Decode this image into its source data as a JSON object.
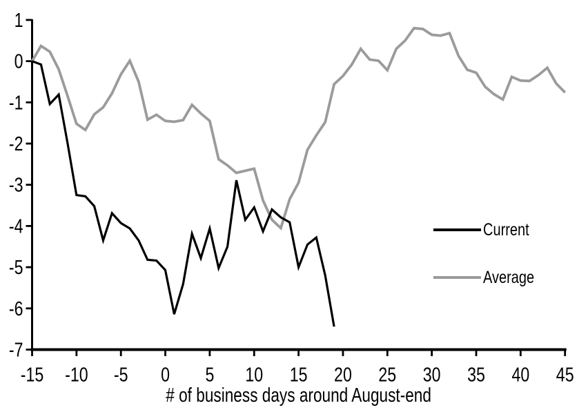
{
  "chart_data": {
    "type": "line",
    "title": "",
    "xlabel": "# of business days around August-end",
    "ylabel": "",
    "xlim": [
      -15,
      45
    ],
    "ylim": [
      -7,
      1
    ],
    "x_ticks": [
      -15,
      -10,
      -5,
      0,
      5,
      10,
      15,
      20,
      25,
      30,
      35,
      40,
      45
    ],
    "y_ticks": [
      1,
      0,
      -1,
      -2,
      -3,
      -4,
      -5,
      -6,
      -7
    ],
    "grid": false,
    "legend_position": "middle-right",
    "background_color": "#ffffff",
    "axis_color": "#000000",
    "series": [
      {
        "name": "Current",
        "color": "#000000",
        "line_width": 3.2,
        "x": [
          -15,
          -14,
          -13,
          -12,
          -11,
          -10,
          -9,
          -8,
          -7,
          -6,
          -5,
          -4,
          -3,
          -2,
          -1,
          0,
          1,
          2,
          3,
          4,
          5,
          6,
          7,
          8,
          9,
          10,
          11,
          12,
          13,
          14,
          15,
          16,
          17,
          18,
          19
        ],
        "values": [
          0,
          -0.08,
          -1.04,
          -0.81,
          -2.0,
          -3.25,
          -3.28,
          -3.52,
          -4.35,
          -3.69,
          -3.93,
          -4.06,
          -4.35,
          -4.82,
          -4.84,
          -5.07,
          -6.14,
          -5.41,
          -4.19,
          -4.78,
          -4.06,
          -5.02,
          -4.5,
          -2.89,
          -3.85,
          -3.55,
          -4.13,
          -3.6,
          -3.79,
          -3.91,
          -5.0,
          -4.45,
          -4.28,
          -5.2,
          -6.44
        ]
      },
      {
        "name": "Average",
        "color": "#9b9b9b",
        "line_width": 3.8,
        "x": [
          -15,
          -14,
          -13,
          -12,
          -11,
          -10,
          -9,
          -8,
          -7,
          -6,
          -5,
          -4,
          -3,
          -2,
          -1,
          0,
          1,
          2,
          3,
          4,
          5,
          6,
          7,
          8,
          9,
          10,
          11,
          12,
          13,
          14,
          15,
          16,
          17,
          18,
          19,
          20,
          21,
          22,
          23,
          24,
          25,
          26,
          27,
          28,
          29,
          30,
          31,
          32,
          33,
          34,
          35,
          36,
          37,
          38,
          39,
          40,
          41,
          42,
          43,
          44,
          45
        ],
        "values": [
          0,
          0.37,
          0.23,
          -0.2,
          -0.85,
          -1.52,
          -1.67,
          -1.29,
          -1.12,
          -0.78,
          -0.32,
          0.01,
          -0.5,
          -1.42,
          -1.3,
          -1.45,
          -1.47,
          -1.43,
          -1.06,
          -1.27,
          -1.45,
          -2.38,
          -2.53,
          -2.71,
          -2.66,
          -2.61,
          -3.38,
          -3.85,
          -4.05,
          -3.35,
          -2.95,
          -2.15,
          -1.8,
          -1.48,
          -0.56,
          -0.36,
          -0.08,
          0.3,
          0.04,
          0.01,
          -0.22,
          0.3,
          0.5,
          0.8,
          0.78,
          0.64,
          0.62,
          0.68,
          0.13,
          -0.21,
          -0.28,
          -0.62,
          -0.8,
          -0.93,
          -0.38,
          -0.47,
          -0.48,
          -0.34,
          -0.16,
          -0.54,
          -0.76
        ]
      }
    ]
  }
}
